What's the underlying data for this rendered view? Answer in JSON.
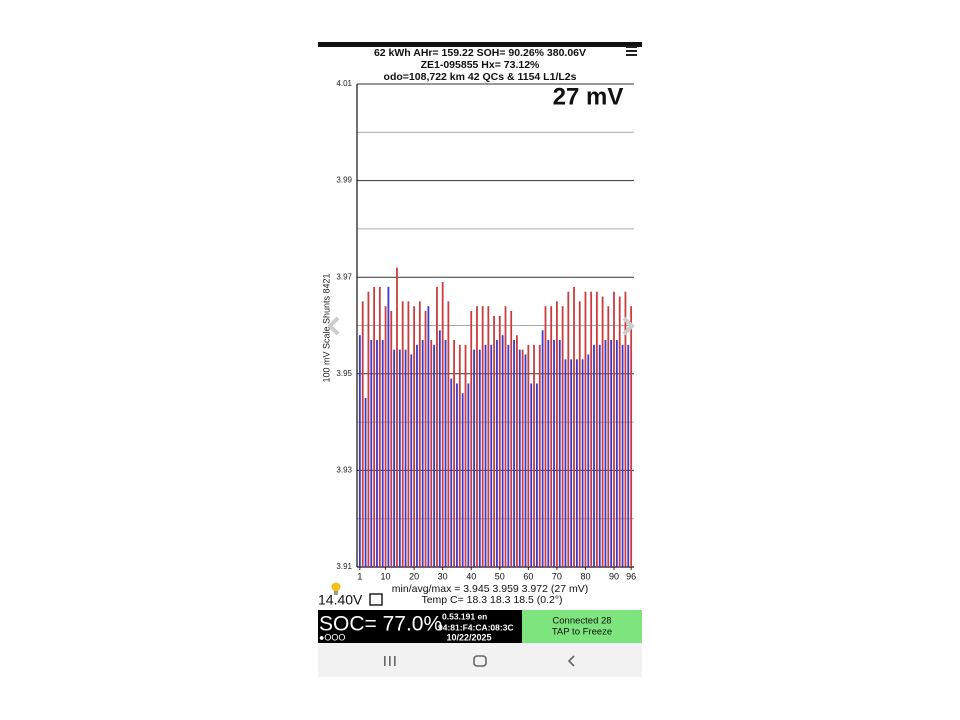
{
  "header": {
    "line1": "62 kWh  AHr= 159.22  SOH= 90.26%   380.06V",
    "line2": "ZE1-095855   Hx= 73.12%",
    "line3": "odo=108,722 km 42 QCs & 1154 L1/L2s"
  },
  "chart_data": {
    "type": "bar",
    "title": "27 mV",
    "y_label": "100 mV Scale   Shunts 8421",
    "x": [
      1,
      2,
      3,
      4,
      5,
      6,
      7,
      8,
      9,
      10,
      11,
      12,
      13,
      14,
      15,
      16,
      17,
      18,
      19,
      20,
      21,
      22,
      23,
      24,
      25,
      26,
      27,
      28,
      29,
      30,
      31,
      32,
      33,
      34,
      35,
      36,
      37,
      38,
      39,
      40,
      41,
      42,
      43,
      44,
      45,
      46,
      47,
      48,
      49,
      50,
      51,
      52,
      53,
      54,
      55,
      56,
      57,
      58,
      59,
      60,
      61,
      62,
      63,
      64,
      65,
      66,
      67,
      68,
      69,
      70,
      71,
      72,
      73,
      74,
      75,
      76,
      77,
      78,
      79,
      80,
      81,
      82,
      83,
      84,
      85,
      86,
      87,
      88,
      89,
      90,
      91,
      92,
      93,
      94,
      95,
      96
    ],
    "values": [
      3.958,
      3.965,
      3.945,
      3.967,
      3.957,
      3.968,
      3.957,
      3.968,
      3.957,
      3.964,
      3.968,
      3.963,
      3.955,
      3.972,
      3.955,
      3.965,
      3.955,
      3.965,
      3.954,
      3.964,
      3.956,
      3.965,
      3.957,
      3.963,
      3.964,
      3.957,
      3.956,
      3.968,
      3.959,
      3.969,
      3.957,
      3.965,
      3.949,
      3.957,
      3.948,
      3.956,
      3.946,
      3.956,
      3.948,
      3.963,
      3.955,
      3.964,
      3.955,
      3.964,
      3.956,
      3.964,
      3.956,
      3.962,
      3.957,
      3.962,
      3.958,
      3.964,
      3.956,
      3.963,
      3.957,
      3.958,
      3.955,
      3.955,
      3.954,
      3.956,
      3.948,
      3.956,
      3.948,
      3.956,
      3.959,
      3.964,
      3.957,
      3.964,
      3.957,
      3.965,
      3.957,
      3.964,
      3.953,
      3.967,
      3.953,
      3.968,
      3.953,
      3.965,
      3.953,
      3.967,
      3.954,
      3.967,
      3.956,
      3.967,
      3.956,
      3.966,
      3.957,
      3.964,
      3.957,
      3.967,
      3.957,
      3.966,
      3.956,
      3.967,
      3.956,
      3.964
    ],
    "colors": [
      "#3a3acb",
      "#cc3c3c"
    ],
    "xlim": [
      0,
      97
    ],
    "xticks": [
      1,
      10,
      20,
      30,
      40,
      50,
      60,
      70,
      80,
      90,
      96
    ],
    "ylim": [
      3.91,
      4.01
    ],
    "yticks": [
      3.91,
      3.93,
      3.95,
      3.97,
      3.99,
      4.01
    ],
    "minor_yticks": [
      3.92,
      3.94,
      3.96,
      3.98,
      4.0
    ],
    "grid": true,
    "stats": "min/avg/max = 3.945 3.959 3.972  (27 mV)",
    "temps": "Temp C= 18.3  18.3  18.5  (0.2°)"
  },
  "footer": {
    "voltage_12v": "14.40V",
    "soc": "SOC= 77.0%",
    "dots": "●OOO",
    "info1": "0.53.191 en",
    "info2": "94:81:F4:CA:08:3C",
    "date": "10/22/2025",
    "status1": "Connected 28",
    "status2": "TAP to Freeze"
  }
}
